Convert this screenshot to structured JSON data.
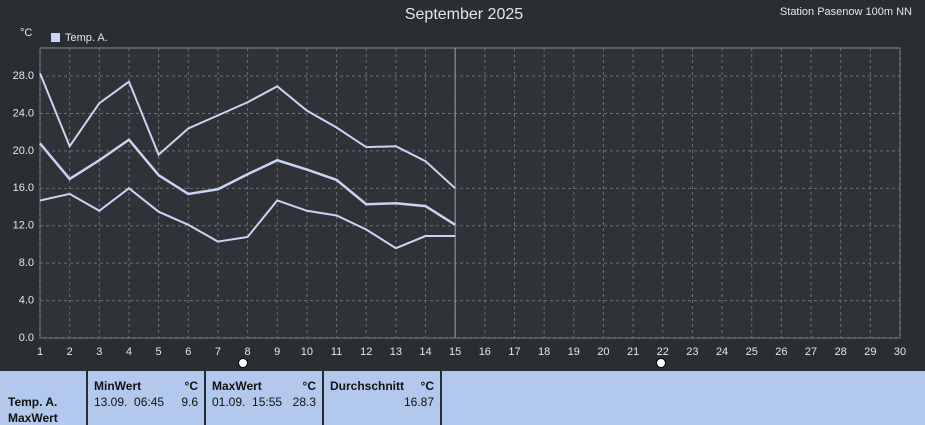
{
  "chart_data": {
    "type": "line",
    "title": "September 2025",
    "subtitle": "Station Pasenow 100m NN",
    "y_label": "°C",
    "x": [
      1,
      2,
      3,
      4,
      5,
      6,
      7,
      8,
      9,
      10,
      11,
      12,
      13,
      14,
      15
    ],
    "series": [
      {
        "name": "Temp. A.",
        "color": "#c8d4f4",
        "high": [
          28.3,
          20.5,
          25.1,
          27.4,
          19.6,
          22.4,
          23.8,
          25.2,
          26.9,
          24.3,
          22.5,
          20.4,
          20.5,
          18.9,
          16.0
        ],
        "values": [
          20.8,
          17.0,
          19.0,
          21.2,
          17.4,
          15.4,
          15.9,
          17.5,
          19.0,
          18.0,
          16.9,
          14.3,
          14.4,
          14.1,
          12.1
        ],
        "low": [
          14.7,
          15.4,
          13.6,
          16.0,
          13.5,
          12.1,
          10.3,
          10.8,
          14.7,
          13.6,
          13.1,
          11.6,
          9.6,
          10.9,
          10.9
        ]
      }
    ],
    "xlim": [
      1,
      30
    ],
    "xticks": [
      1,
      2,
      3,
      4,
      5,
      6,
      7,
      8,
      9,
      10,
      11,
      12,
      13,
      14,
      15,
      16,
      17,
      18,
      19,
      20,
      21,
      22,
      23,
      24,
      25,
      26,
      27,
      28,
      29,
      30
    ],
    "ylim": [
      0,
      31
    ],
    "yticks": [
      {
        "value": 0,
        "label": "0.0"
      },
      {
        "value": 4,
        "label": "4.0"
      },
      {
        "value": 8,
        "label": "8.0"
      },
      {
        "value": 12,
        "label": "12.0"
      },
      {
        "value": 16,
        "label": "16.0"
      },
      {
        "value": 20,
        "label": "20.0"
      },
      {
        "value": 24,
        "label": "24.0"
      },
      {
        "value": 28,
        "label": "28.0"
      }
    ],
    "grid": true
  },
  "summary": {
    "row_label": [
      "Temp. A.",
      "MaxWert"
    ],
    "columns": [
      {
        "header": "MinWert",
        "unit": "°C",
        "time": "13.09.  06:45",
        "value": "9.6"
      },
      {
        "header": "MaxWert",
        "unit": "°C",
        "time": "01.09.  15:55",
        "value": "28.3"
      },
      {
        "header": "Durchschnitt",
        "unit": "°C",
        "time": "",
        "value": "16.87"
      }
    ]
  }
}
